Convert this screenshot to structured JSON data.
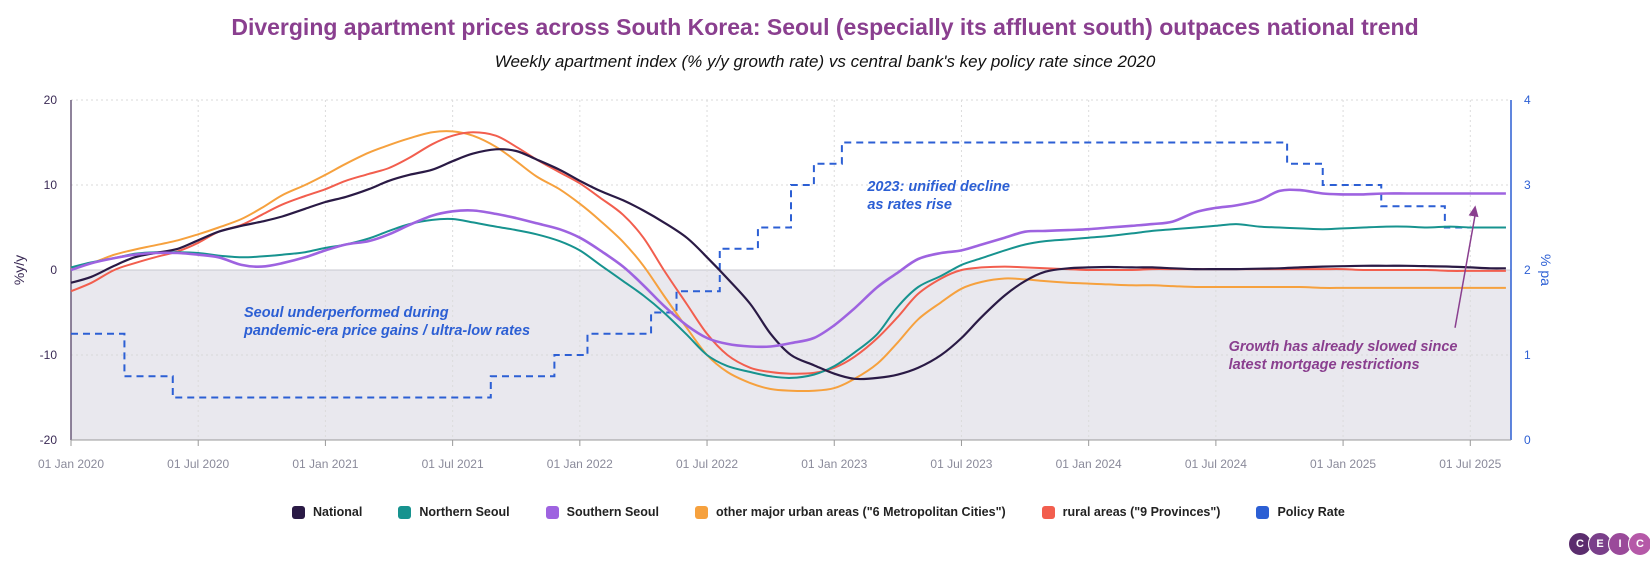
{
  "chart_data": {
    "type": "line",
    "title": "Diverging apartment prices across South Korea: Seoul (especially its affluent south) outpaces national trend",
    "subtitle": "Weekly apartment index (% y/y growth rate) vs central bank's key policy rate since 2020",
    "ylabel_left": "%y/y",
    "ylabel_right": "% pa",
    "ylim_left": [
      -20,
      20
    ],
    "ylim_right": [
      0,
      4
    ],
    "yticks_left": [
      "20",
      "10",
      "0",
      "-10",
      "-20"
    ],
    "yticks_right": [
      "4",
      "3",
      "2",
      "1",
      "0"
    ],
    "xlim": [
      2020.0,
      2025.66
    ],
    "xticks": [
      {
        "x": 2020.0,
        "label": "01 Jan 2020"
      },
      {
        "x": 2020.5,
        "label": "01 Jul 2020"
      },
      {
        "x": 2021.0,
        "label": "01 Jan 2021"
      },
      {
        "x": 2021.5,
        "label": "01 Jul 2021"
      },
      {
        "x": 2022.0,
        "label": "01 Jan 2022"
      },
      {
        "x": 2022.5,
        "label": "01 Jul 2022"
      },
      {
        "x": 2023.0,
        "label": "01 Jan 2023"
      },
      {
        "x": 2023.5,
        "label": "01 Jul 2023"
      },
      {
        "x": 2024.0,
        "label": "01 Jan 2024"
      },
      {
        "x": 2024.5,
        "label": "01 Jul 2024"
      },
      {
        "x": 2025.0,
        "label": "01 Jan 2025"
      },
      {
        "x": 2025.5,
        "label": "01 Jul 2025"
      }
    ],
    "x": [
      2020.0,
      2020.08,
      2020.17,
      2020.25,
      2020.33,
      2020.42,
      2020.5,
      2020.58,
      2020.67,
      2020.75,
      2020.83,
      2020.92,
      2021.0,
      2021.08,
      2021.17,
      2021.25,
      2021.33,
      2021.42,
      2021.5,
      2021.58,
      2021.67,
      2021.75,
      2021.83,
      2021.92,
      2022.0,
      2022.08,
      2022.17,
      2022.25,
      2022.33,
      2022.42,
      2022.5,
      2022.58,
      2022.67,
      2022.75,
      2022.83,
      2022.92,
      2023.0,
      2023.08,
      2023.17,
      2023.25,
      2023.33,
      2023.42,
      2023.5,
      2023.58,
      2023.67,
      2023.75,
      2023.83,
      2023.92,
      2024.0,
      2024.08,
      2024.17,
      2024.25,
      2024.33,
      2024.42,
      2024.5,
      2024.58,
      2024.67,
      2024.75,
      2024.83,
      2024.92,
      2025.0,
      2025.08,
      2025.17,
      2025.25,
      2025.33,
      2025.42,
      2025.5,
      2025.58,
      2025.64
    ],
    "series": [
      {
        "name": "National",
        "color": "#2a1a45",
        "width": 2.2,
        "values": [
          -1.5,
          -0.8,
          0.5,
          1.5,
          2.0,
          2.5,
          3.5,
          4.5,
          5.2,
          5.7,
          6.3,
          7.2,
          8.0,
          8.6,
          9.5,
          10.5,
          11.2,
          11.8,
          12.8,
          13.7,
          14.2,
          14.0,
          13.0,
          11.8,
          10.5,
          9.3,
          8.2,
          7.0,
          5.6,
          3.8,
          1.5,
          -1.0,
          -4.0,
          -7.5,
          -10.0,
          -11.2,
          -12.2,
          -12.8,
          -12.7,
          -12.3,
          -11.5,
          -10.0,
          -8.0,
          -5.5,
          -3.0,
          -1.3,
          -0.2,
          0.2,
          0.3,
          0.35,
          0.3,
          0.3,
          0.2,
          0.1,
          0.1,
          0.1,
          0.15,
          0.2,
          0.3,
          0.4,
          0.45,
          0.5,
          0.5,
          0.5,
          0.45,
          0.4,
          0.3,
          0.2,
          0.2
        ]
      },
      {
        "name": "Northern Seoul",
        "color": "#17938f",
        "width": 2.0,
        "values": [
          0.3,
          0.9,
          1.4,
          1.9,
          2.1,
          2.1,
          2.0,
          1.7,
          1.5,
          1.6,
          1.8,
          2.1,
          2.6,
          3.0,
          3.7,
          4.6,
          5.4,
          5.9,
          6.0,
          5.6,
          5.1,
          4.7,
          4.2,
          3.4,
          2.3,
          0.6,
          -1.3,
          -3.0,
          -5.0,
          -7.6,
          -10.0,
          -11.3,
          -12.0,
          -12.5,
          -12.7,
          -12.3,
          -11.3,
          -9.7,
          -7.5,
          -4.3,
          -2.0,
          -0.7,
          0.6,
          1.4,
          2.3,
          3.0,
          3.4,
          3.6,
          3.8,
          4.0,
          4.3,
          4.6,
          4.8,
          5.0,
          5.2,
          5.4,
          5.1,
          5.0,
          4.9,
          4.8,
          4.9,
          5.0,
          5.1,
          5.1,
          5.0,
          5.1,
          5.0,
          5.0,
          5.0
        ]
      },
      {
        "name": "Southern Seoul",
        "color": "#9e63e0",
        "width": 2.6,
        "values": [
          0.0,
          0.8,
          1.4,
          1.8,
          2.0,
          2.0,
          1.8,
          1.5,
          0.6,
          0.4,
          0.8,
          1.5,
          2.3,
          3.0,
          3.4,
          4.2,
          5.3,
          6.4,
          6.9,
          7.0,
          6.6,
          6.1,
          5.5,
          4.8,
          3.8,
          2.3,
          0.4,
          -1.8,
          -4.2,
          -6.5,
          -8.0,
          -8.7,
          -9.0,
          -9.0,
          -8.6,
          -8.0,
          -6.5,
          -4.5,
          -2.0,
          -0.3,
          1.3,
          2.0,
          2.3,
          3.0,
          3.8,
          4.5,
          4.6,
          4.7,
          4.8,
          5.0,
          5.2,
          5.4,
          5.7,
          6.8,
          7.3,
          7.6,
          8.2,
          9.3,
          9.4,
          9.0,
          8.9,
          8.9,
          9.0,
          9.0,
          9.0,
          9.0,
          9.0,
          9.0,
          9.0
        ]
      },
      {
        "name": "other major urban areas (\"6 Metropolitan Cities\")",
        "color": "#f6a13e",
        "width": 2.0,
        "values": [
          0.2,
          0.8,
          1.8,
          2.4,
          2.9,
          3.5,
          4.2,
          5.0,
          6.0,
          7.3,
          8.8,
          10.0,
          11.2,
          12.5,
          13.8,
          14.7,
          15.5,
          16.2,
          16.3,
          15.8,
          14.5,
          12.8,
          11.0,
          9.5,
          7.8,
          5.8,
          3.3,
          0.5,
          -3.0,
          -6.8,
          -10.0,
          -12.0,
          -13.3,
          -14.0,
          -14.2,
          -14.2,
          -13.9,
          -12.8,
          -11.0,
          -8.5,
          -5.8,
          -3.8,
          -2.2,
          -1.4,
          -1.0,
          -1.1,
          -1.3,
          -1.5,
          -1.6,
          -1.7,
          -1.8,
          -1.8,
          -1.9,
          -2.0,
          -2.0,
          -2.0,
          -2.0,
          -2.0,
          -2.0,
          -2.1,
          -2.1,
          -2.1,
          -2.1,
          -2.1,
          -2.1,
          -2.1,
          -2.1,
          -2.1,
          -2.1
        ]
      },
      {
        "name": "rural areas (\"9 Provinces\")",
        "color": "#f25e4e",
        "width": 2.0,
        "values": [
          -2.5,
          -1.5,
          0.0,
          0.8,
          1.5,
          2.2,
          3.2,
          4.5,
          5.3,
          6.5,
          7.7,
          8.7,
          9.5,
          10.5,
          11.3,
          12.0,
          13.2,
          14.8,
          15.8,
          16.2,
          15.8,
          14.5,
          13.0,
          11.5,
          10.2,
          8.5,
          6.5,
          3.8,
          0.0,
          -4.0,
          -7.5,
          -10.0,
          -11.5,
          -12.0,
          -12.2,
          -12.1,
          -11.5,
          -10.2,
          -8.0,
          -5.5,
          -2.8,
          -1.0,
          0.0,
          0.3,
          0.4,
          0.3,
          0.2,
          0.1,
          0.0,
          0.0,
          0.0,
          0.1,
          0.1,
          0.1,
          0.1,
          0.1,
          0.1,
          0.1,
          0.1,
          0.1,
          0.1,
          0.0,
          0.0,
          0.0,
          0.0,
          -0.1,
          -0.1,
          -0.1,
          -0.1
        ]
      }
    ],
    "policy_rate": {
      "name": "Policy Rate",
      "color": "#2c5fd4",
      "steps": [
        [
          2020.0,
          1.25
        ],
        [
          2020.21,
          0.75
        ],
        [
          2020.4,
          0.5
        ],
        [
          2021.65,
          0.75
        ],
        [
          2021.9,
          1.0
        ],
        [
          2022.03,
          1.25
        ],
        [
          2022.28,
          1.5
        ],
        [
          2022.38,
          1.75
        ],
        [
          2022.55,
          2.25
        ],
        [
          2022.7,
          2.5
        ],
        [
          2022.83,
          3.0
        ],
        [
          2022.92,
          3.25
        ],
        [
          2023.03,
          3.5
        ],
        [
          2024.78,
          3.25
        ],
        [
          2024.92,
          3.0
        ],
        [
          2025.15,
          2.75
        ],
        [
          2025.4,
          2.5
        ],
        [
          2025.64,
          2.5
        ]
      ]
    },
    "annotations": [
      {
        "text_lines": [
          "Seoul underperformed during",
          "pandemic-era price gains / ultra-low rates"
        ],
        "x": 2020.68,
        "y": -5.5,
        "color": "#2c5fd4"
      },
      {
        "text_lines": [
          "2023: unified decline",
          "as rates rise"
        ],
        "x": 2023.13,
        "y": 9.3,
        "color": "#2c5fd4"
      },
      {
        "text_lines": [
          "Growth has already slowed since",
          "latest mortgage restrictions"
        ],
        "x": 2024.55,
        "y": -9.5,
        "color": "#8a3f8f"
      }
    ],
    "arrow": {
      "from_x": 2025.44,
      "from_y": -6.8,
      "to_x": 2025.52,
      "to_y": 7.6,
      "color": "#8a3f8f"
    },
    "legend_position": "bottom"
  },
  "legend": [
    {
      "label": "National",
      "color": "#2a1a45"
    },
    {
      "label": "Northern Seoul",
      "color": "#17938f"
    },
    {
      "label": "Southern Seoul",
      "color": "#9e63e0"
    },
    {
      "label": "other major urban areas (\"6 Metropolitan Cities\")",
      "color": "#f6a13e"
    },
    {
      "label": "rural areas (\"9 Provinces\")",
      "color": "#f25e4e"
    },
    {
      "label": "Policy Rate",
      "color": "#2c5fd4"
    }
  ],
  "logo": {
    "letters": [
      "C",
      "E",
      "I",
      "C"
    ]
  }
}
